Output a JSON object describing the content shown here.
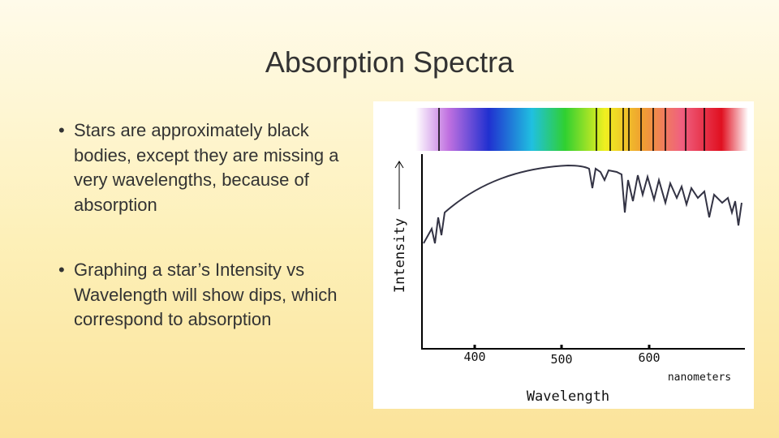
{
  "slide": {
    "title": "Absorption Spectra",
    "bullets": [
      "Stars are approximately black bodies, except they are missing a very wavelengths, because of absorption",
      "Graphing a star’s Intensity vs Wavelength will show dips, which correspond to absorption"
    ],
    "figure": {
      "y_label": "Intensity",
      "x_label": "Wavelength",
      "unit": "nanometers",
      "ticks": [
        "400",
        "500",
        "600"
      ]
    }
  }
}
